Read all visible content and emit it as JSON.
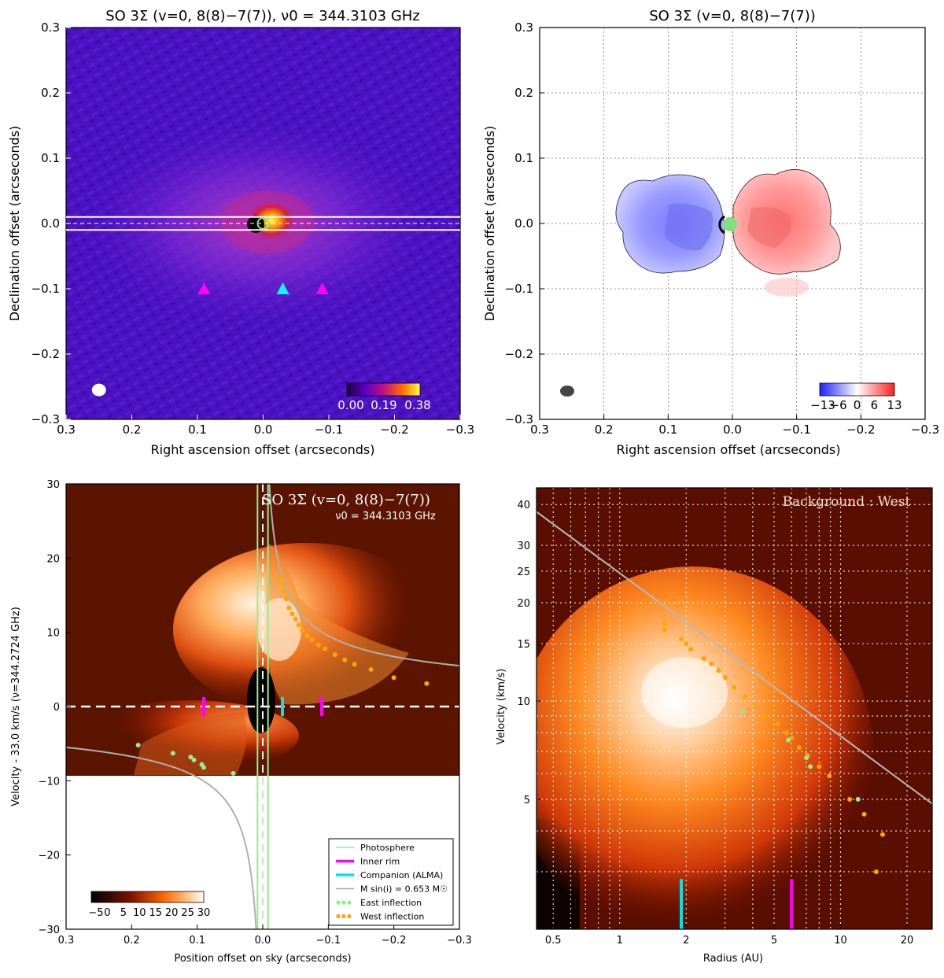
{
  "figure_title": "SO 3Σ (v = 0, 8(8) − 7(7))",
  "chart_data": [
    {
      "type": "heatmap",
      "panel": "top-left",
      "title": "SO 3Σ (v=0, 8(8)−7(7)), ν0 = 344.3103 GHz",
      "xlabel": "Right ascension offset (arcseconds)",
      "ylabel": "Declination offset (arcseconds)",
      "xlim": [
        0.3,
        -0.3
      ],
      "ylim": [
        -0.3,
        0.3
      ],
      "xticks": [
        "0.3",
        "0.2",
        "0.1",
        "0.0",
        "−0.1",
        "−0.2",
        "−0.3"
      ],
      "yticks": [
        "0.3",
        "0.2",
        "0.1",
        "0.0",
        "−0.1",
        "−0.2",
        "−0.3"
      ],
      "colorbar": {
        "labels": [
          "0.00",
          "0.19",
          "0.38"
        ],
        "range": [
          0.0,
          0.38
        ]
      },
      "slit_halfwidth": 0.01,
      "emission_peak": {
        "x": -0.03,
        "y": 0.01,
        "value": 0.38
      },
      "markers": [
        {
          "label": "Inner rim (east)",
          "x": 0.09,
          "y": -0.1,
          "color": "#ff00ff"
        },
        {
          "label": "Companion",
          "x": -0.03,
          "y": -0.1,
          "color": "#00ffff"
        },
        {
          "label": "Inner rim (west)",
          "x": -0.09,
          "y": -0.1,
          "color": "#ff00ff"
        }
      ],
      "beam": {
        "x": 0.25,
        "y": -0.255
      }
    },
    {
      "type": "heatmap",
      "panel": "top-right",
      "title": "SO 3Σ (v=0, 8(8)−7(7))",
      "xlabel": "Right ascension offset (arcseconds)",
      "ylabel": "Declination offset (arcseconds)",
      "xlim": [
        0.3,
        -0.3
      ],
      "ylim": [
        -0.3,
        0.3
      ],
      "xticks": [
        "0.3",
        "0.2",
        "0.1",
        "0.0",
        "−0.1",
        "−0.2",
        "−0.3"
      ],
      "yticks": [
        "0.3",
        "0.2",
        "0.1",
        "0.0",
        "−0.1",
        "−0.2",
        "−0.3"
      ],
      "grid": true,
      "colorbar": {
        "labels": [
          "−13",
          "−6",
          "0",
          "6",
          "13"
        ],
        "range": [
          -13,
          13
        ]
      },
      "blue_lobe_center": {
        "x": 0.08,
        "y": 0.0
      },
      "red_lobe_center": {
        "x": -0.08,
        "y": 0.0
      },
      "beam": {
        "x": 0.25,
        "y": -0.255
      }
    },
    {
      "type": "heatmap",
      "panel": "bottom-left",
      "title": "SO 3Σ (v=0, 8(8)−7(7))",
      "subtitle": "ν0 = 344.3103 GHz",
      "xlabel": "Position offset on sky (arcseconds)",
      "ylabel": "Velocity - 33.0 km/s (ν=344.2724 GHz)",
      "xlim": [
        0.3,
        -0.3
      ],
      "ylim": [
        -30,
        30
      ],
      "xticks": [
        "0.3",
        "0.2",
        "0.1",
        "0.0",
        "−0.1",
        "−0.2",
        "−0.3"
      ],
      "yticks": [
        "30",
        "20",
        "10",
        "0",
        "−10",
        "−20",
        "−30"
      ],
      "data_cutoff_velocity": -9.5,
      "colorbar": {
        "labels": [
          "−5",
          "0",
          "5",
          "10",
          "15",
          "20",
          "25",
          "30"
        ],
        "range": [
          -5,
          30
        ]
      },
      "photosphere_x": [
        0.008,
        -0.008
      ],
      "inner_rim_x": [
        0.09,
        -0.09
      ],
      "companion_x": -0.03,
      "keplerian_mass": "M sin(i) = 0.653 M☉",
      "east_inflection": [
        {
          "x": 0.19,
          "v": -5.2
        },
        {
          "x": 0.137,
          "v": -6.3
        },
        {
          "x": 0.11,
          "v": -6.8
        },
        {
          "x": 0.105,
          "v": -7.2
        },
        {
          "x": 0.093,
          "v": -7.8
        },
        {
          "x": 0.09,
          "v": -8.2
        },
        {
          "x": 0.045,
          "v": -9.0
        }
      ],
      "west_inflection": [
        {
          "x": -0.027,
          "v": 17.3
        },
        {
          "x": -0.03,
          "v": 16.5
        },
        {
          "x": -0.033,
          "v": 15.5
        },
        {
          "x": -0.036,
          "v": 14.5
        },
        {
          "x": -0.04,
          "v": 13.3
        },
        {
          "x": -0.045,
          "v": 12.5
        },
        {
          "x": -0.05,
          "v": 11.8
        },
        {
          "x": -0.055,
          "v": 11.0
        },
        {
          "x": -0.06,
          "v": 10.3
        },
        {
          "x": -0.068,
          "v": 9.5
        },
        {
          "x": -0.075,
          "v": 9.0
        },
        {
          "x": -0.085,
          "v": 8.3
        },
        {
          "x": -0.095,
          "v": 7.8
        },
        {
          "x": -0.11,
          "v": 7.0
        },
        {
          "x": -0.125,
          "v": 6.3
        },
        {
          "x": -0.14,
          "v": 5.7
        },
        {
          "x": -0.165,
          "v": 5.0
        },
        {
          "x": -0.2,
          "v": 3.9
        },
        {
          "x": -0.25,
          "v": 3.1
        }
      ],
      "legend": [
        {
          "label": "Photosphere",
          "color": "#90ee90",
          "kind": "line"
        },
        {
          "label": "Inner rim",
          "color": "#ff00ff",
          "kind": "line"
        },
        {
          "label": "Companion (ALMA)",
          "color": "#00e5e5",
          "kind": "line"
        },
        {
          "label": "M sin(i) = 0.653 M☉",
          "color": "#aaaaaa",
          "kind": "line"
        },
        {
          "label": "East inflection",
          "color": "#90ee90",
          "kind": "dots"
        },
        {
          "label": "West inflection",
          "color": "#ffa500",
          "kind": "dots"
        }
      ],
      "legend_position": "bottom-right"
    },
    {
      "type": "heatmap",
      "panel": "bottom-right",
      "annotation": "Background : West",
      "xlabel": "Radius (AU)",
      "ylabel": "Velocity (km/s)",
      "xscale": "log",
      "yscale": "log",
      "xlim": [
        0.42,
        26
      ],
      "ylim": [
        2.0,
        45
      ],
      "xticks": [
        "0.5",
        "1",
        "2",
        "5",
        "10",
        "20"
      ],
      "yticks": [
        "5",
        "10",
        "15",
        "20",
        "25",
        "30",
        "40"
      ],
      "grid": true,
      "companion_radius": 1.9,
      "inner_rim_radius": 6.0,
      "keplerian_line": [
        {
          "r": 0.42,
          "v": 38.0
        },
        {
          "r": 26,
          "v": 4.85
        }
      ],
      "west_inflection": [
        {
          "r": 1.6,
          "v": 17.3
        },
        {
          "r": 1.6,
          "v": 16.5
        },
        {
          "r": 1.9,
          "v": 15.5
        },
        {
          "r": 2.0,
          "v": 15.0
        },
        {
          "r": 2.1,
          "v": 14.4
        },
        {
          "r": 2.4,
          "v": 13.5
        },
        {
          "r": 2.6,
          "v": 13.0
        },
        {
          "r": 2.8,
          "v": 12.4
        },
        {
          "r": 3.0,
          "v": 11.8
        },
        {
          "r": 3.3,
          "v": 11.0
        },
        {
          "r": 3.7,
          "v": 10.3
        },
        {
          "r": 4.1,
          "v": 9.7
        },
        {
          "r": 4.5,
          "v": 9.0
        },
        {
          "r": 5.2,
          "v": 8.5
        },
        {
          "r": 5.7,
          "v": 8.0
        },
        {
          "r": 6.0,
          "v": 7.7
        },
        {
          "r": 6.5,
          "v": 7.2
        },
        {
          "r": 7.1,
          "v": 6.8
        },
        {
          "r": 8.0,
          "v": 6.3
        },
        {
          "r": 8.9,
          "v": 5.9
        },
        {
          "r": 11.0,
          "v": 5.0
        },
        {
          "r": 12.8,
          "v": 4.5
        },
        {
          "r": 15.5,
          "v": 3.9
        },
        {
          "r": 14.5,
          "v": 3.0
        }
      ],
      "east_inflection": [
        {
          "r": 3.6,
          "v": 9.3
        },
        {
          "r": 5.8,
          "v": 7.6
        },
        {
          "r": 7.0,
          "v": 6.7
        },
        {
          "r": 7.3,
          "v": 6.3
        },
        {
          "r": 12.0,
          "v": 5.0
        }
      ]
    }
  ]
}
